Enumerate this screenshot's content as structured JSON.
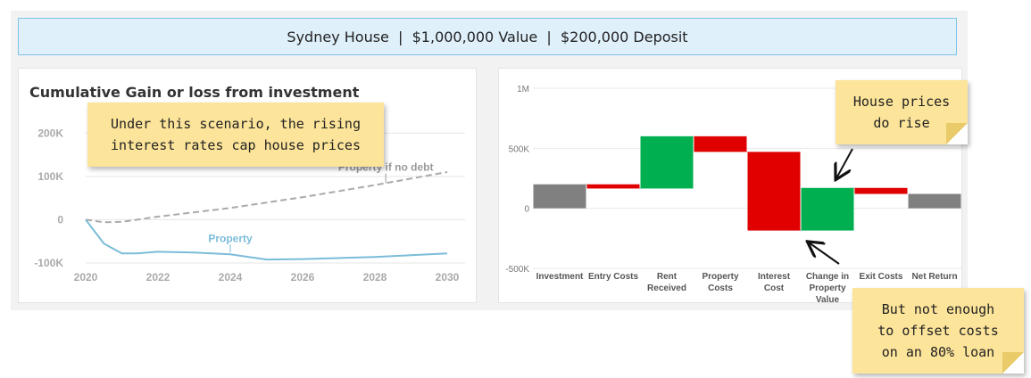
{
  "banner": {
    "text": "Sydney House  |  $1,000,000 Value  |  $200,000 Deposit"
  },
  "left_panel": {
    "title": "Cumulative Gain or loss from investment"
  },
  "notes": {
    "top_left": [
      "Under this scenario, the rising",
      "interest rates cap house prices"
    ],
    "top_right": [
      "House prices",
      "do rise"
    ],
    "bottom_right": [
      "But not enough",
      "to offset costs",
      "on an 80% loan"
    ]
  },
  "chart_data": [
    {
      "type": "line",
      "title": "Cumulative Gain or loss from investment",
      "xlabel": "",
      "ylabel": "",
      "xlim": [
        2020,
        2030
      ],
      "ylim": [
        -100000,
        250000
      ],
      "x_ticks": [
        "2020",
        "2022",
        "2024",
        "2026",
        "2028",
        "2030"
      ],
      "y_ticks": [
        "-100K",
        "0",
        "100K",
        "200K"
      ],
      "y_tick_values": [
        -100000,
        0,
        100000,
        200000
      ],
      "grid": true,
      "series": [
        {
          "name": "Property if no debt",
          "style": "dashed",
          "color": "#aaaaaa",
          "x": [
            2020,
            2020.5,
            2021,
            2022,
            2024,
            2026,
            2028,
            2030
          ],
          "y": [
            0,
            -6000,
            -5000,
            7000,
            27000,
            52000,
            80000,
            110000
          ]
        },
        {
          "name": "Property",
          "style": "solid",
          "color": "#7bbcd9",
          "x": [
            2020,
            2020.5,
            2021,
            2021.4,
            2022,
            2023,
            2024,
            2025,
            2026,
            2028,
            2030
          ],
          "y": [
            0,
            -55000,
            -78000,
            -78000,
            -74000,
            -76000,
            -80000,
            -92000,
            -91000,
            -86000,
            -78000
          ]
        }
      ]
    },
    {
      "type": "bar",
      "subtype": "waterfall",
      "ylim": [
        -500000,
        1000000
      ],
      "y_ticks": [
        "-500K",
        "0",
        "500K",
        "1M"
      ],
      "y_tick_values": [
        -500000,
        0,
        500000,
        1000000
      ],
      "grid": true,
      "categories": [
        "Investment",
        "Entry Costs",
        "Rent Received",
        "Property Costs",
        "Interest Cost",
        "Change in Property Value",
        "Exit Costs",
        "Net Return"
      ],
      "category_lines": [
        [
          "Investment"
        ],
        [
          "Entry Costs"
        ],
        [
          "Rent",
          "Received"
        ],
        [
          "Property",
          "Costs"
        ],
        [
          "Interest",
          "Cost"
        ],
        [
          "Change in",
          "Property",
          "Value"
        ],
        [
          "Exit Costs"
        ],
        [
          "Net Return"
        ]
      ],
      "bars": [
        {
          "start": 0,
          "end": 200000,
          "kind": "total"
        },
        {
          "start": 200000,
          "end": 165000,
          "kind": "decrease"
        },
        {
          "start": 165000,
          "end": 600000,
          "kind": "increase"
        },
        {
          "start": 600000,
          "end": 470000,
          "kind": "decrease"
        },
        {
          "start": 470000,
          "end": -185000,
          "kind": "decrease"
        },
        {
          "start": -185000,
          "end": 170000,
          "kind": "increase"
        },
        {
          "start": 170000,
          "end": 120000,
          "kind": "decrease"
        },
        {
          "start": 0,
          "end": 120000,
          "kind": "total"
        }
      ],
      "colors": {
        "increase": "#00b050",
        "decrease": "#e00000",
        "total": "#808080"
      }
    }
  ]
}
